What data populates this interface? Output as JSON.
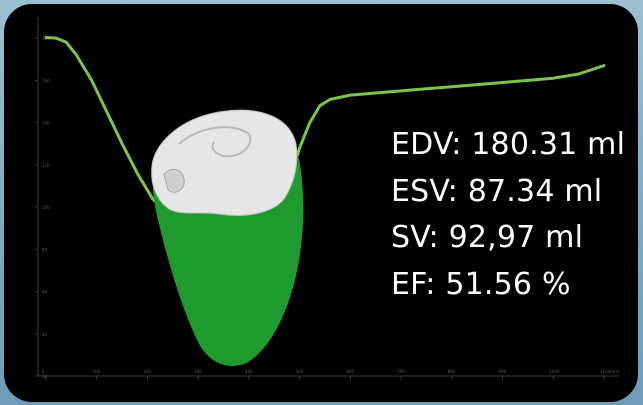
{
  "colors": {
    "frame_bg": "#86afc8",
    "panel_bg": "#000000",
    "curve": "#7cc44a",
    "heart_body": "#1f9a2e",
    "heart_cap": "#e6e6e6",
    "text": "#ffffff",
    "tick": "#3a3a3a"
  },
  "chart_data": {
    "type": "line",
    "title": "",
    "xlabel": "(ms)",
    "ylabel": "",
    "ylim": [
      20,
      190
    ],
    "xlim": [
      0,
      1100
    ],
    "x_ticks": [
      0,
      100,
      200,
      300,
      400,
      500,
      600,
      700,
      800,
      900,
      1000,
      1100
    ],
    "y_ticks": [
      20,
      40,
      60,
      80,
      100,
      120,
      140,
      160,
      180
    ],
    "series": [
      {
        "x": [
          0,
          20,
          40,
          60,
          90,
          120,
          150,
          180,
          210,
          240,
          270,
          300,
          330,
          360,
          390,
          420,
          440,
          460,
          480,
          500,
          520,
          540,
          560,
          600,
          650,
          700,
          750,
          800,
          850,
          900,
          950,
          1000,
          1050,
          1100
        ],
        "y": [
          180.3,
          180,
          178,
          172,
          160,
          145,
          130,
          116,
          104,
          96,
          91,
          88,
          87.5,
          87.3,
          88,
          90,
          93,
          100,
          112,
          128,
          140,
          148,
          151,
          153,
          154,
          155,
          156,
          157,
          158,
          159,
          160,
          161,
          163,
          167
        ]
      }
    ]
  },
  "stats": {
    "edv": "EDV: 180.31 ml",
    "esv": "ESV: 87.34 ml",
    "sv": "SV: 92,97 ml",
    "ef": "EF: 51.56 %"
  }
}
